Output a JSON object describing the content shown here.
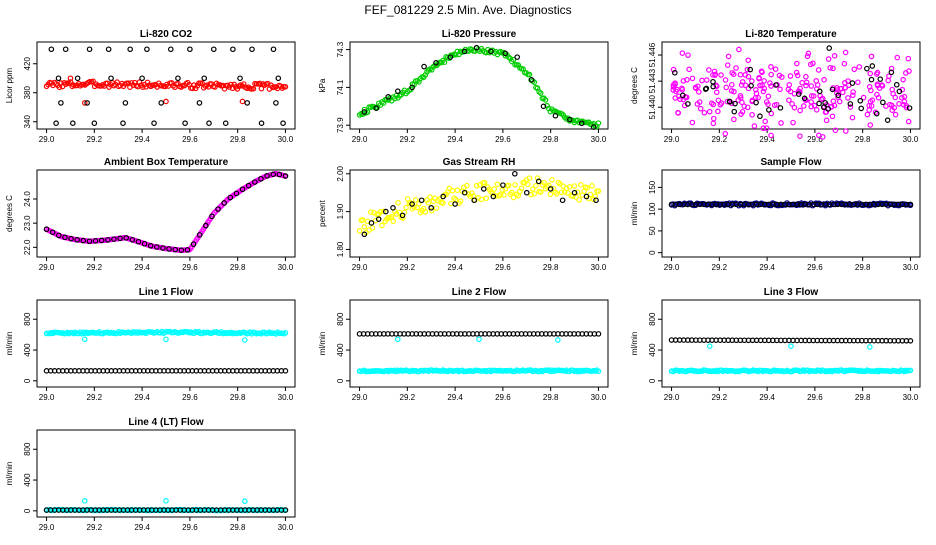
{
  "page": {
    "title": "FEF_081229  2.5 Min. Ave. Diagnostics"
  },
  "chart_data": [
    {
      "id": "co2",
      "type": "scatter",
      "title": "Li-820 CO2",
      "ylabel": "Licor ppm",
      "xlim": [
        29.0,
        30.0
      ],
      "ylim": [
        330,
        450
      ],
      "xticks": [
        "29.0",
        "29.2",
        "29.4",
        "29.6",
        "29.8",
        "30.0"
      ],
      "yticks": [
        "340",
        "380",
        "420"
      ],
      "series": [
        {
          "color": "#ff0000",
          "kind": "band",
          "x": [
            29.0,
            29.2,
            29.4,
            29.6,
            29.8,
            30.0
          ],
          "y": [
            391,
            392,
            391,
            390,
            389,
            389
          ],
          "spread": 4
        },
        {
          "color": "#ff0000",
          "kind": "points",
          "x": [
            29.1,
            29.16,
            29.5,
            29.82
          ],
          "y": [
            400,
            366,
            368,
            368
          ]
        },
        {
          "color": "#000000",
          "kind": "points",
          "x": [
            29.02,
            29.08,
            29.18,
            29.26,
            29.35,
            29.42,
            29.52,
            29.6,
            29.7,
            29.78,
            29.86,
            29.95,
            29.05,
            29.13,
            29.27,
            29.4,
            29.55,
            29.66,
            29.81,
            29.97,
            29.04,
            29.11,
            29.2,
            29.32,
            29.45,
            29.58,
            29.68,
            29.75,
            29.9,
            29.99,
            29.06,
            29.17,
            29.33,
            29.48,
            29.64,
            29.84,
            29.96
          ],
          "y": [
            440,
            440,
            440,
            440,
            440,
            440,
            440,
            440,
            440,
            440,
            440,
            440,
            400,
            400,
            400,
            400,
            400,
            400,
            400,
            400,
            338,
            338,
            338,
            338,
            338,
            338,
            338,
            338,
            338,
            338,
            366,
            366,
            366,
            366,
            366,
            366,
            366
          ]
        }
      ]
    },
    {
      "id": "pressure",
      "type": "scatter",
      "title": "Li-820 Pressure",
      "ylabel": "kPa",
      "xlim": [
        29.0,
        30.0
      ],
      "ylim": [
        73.88,
        74.34
      ],
      "xticks": [
        "29.0",
        "29.2",
        "29.4",
        "29.6",
        "29.8",
        "30.0"
      ],
      "yticks": [
        "73.9",
        "74.1",
        "74.3"
      ],
      "series": [
        {
          "color": "#00cc00",
          "kind": "band",
          "x": [
            29.0,
            29.1,
            29.2,
            29.3,
            29.4,
            29.5,
            29.6,
            29.7,
            29.8,
            29.9,
            30.0
          ],
          "y": [
            73.96,
            74.02,
            74.08,
            74.2,
            74.28,
            74.3,
            74.28,
            74.18,
            73.98,
            73.92,
            73.9
          ],
          "spread": 0.012
        },
        {
          "color": "#000000",
          "kind": "points",
          "x": [
            29.02,
            29.07,
            29.12,
            29.16,
            29.22,
            29.27,
            29.32,
            29.38,
            29.44,
            29.49,
            29.55,
            29.61,
            29.66,
            29.72,
            29.77,
            29.82,
            29.88,
            29.93,
            29.98
          ],
          "y": [
            73.97,
            73.99,
            74.05,
            74.08,
            74.1,
            74.21,
            74.23,
            74.26,
            74.29,
            74.31,
            74.29,
            74.28,
            74.26,
            74.14,
            74.0,
            73.95,
            73.93,
            73.91,
            73.89
          ]
        }
      ]
    },
    {
      "id": "temp820",
      "type": "scatter",
      "title": "Li-820 Temperature",
      "ylabel": "degrees C",
      "xlim": [
        29.0,
        30.0
      ],
      "ylim": [
        51.4375,
        51.4475
      ],
      "xticks": [
        "29.0",
        "29.2",
        "29.4",
        "29.6",
        "29.8",
        "30.0"
      ],
      "yticks": [
        "51.440",
        "51.443",
        "51.446"
      ],
      "series": [
        {
          "color": "#ff00ff",
          "kind": "cloud",
          "x": [
            29.0,
            30.0
          ],
          "y": [
            51.4385,
            51.4452
          ],
          "n": 260,
          "seed": 7
        },
        {
          "color": "#000000",
          "kind": "cloud",
          "x": [
            29.0,
            30.0
          ],
          "y": [
            51.4388,
            51.4446
          ],
          "n": 42,
          "seed": 19
        },
        {
          "color": "#000000",
          "kind": "points",
          "x": [
            29.66
          ],
          "y": [
            51.4468
          ]
        }
      ]
    },
    {
      "id": "ambient",
      "type": "line",
      "title": "Ambient Box Temperature",
      "ylabel": "degrees C",
      "xlim": [
        29.0,
        30.0
      ],
      "ylim": [
        21.6,
        25.2
      ],
      "xticks": [
        "29.0",
        "29.2",
        "29.4",
        "29.6",
        "29.8",
        "30.0"
      ],
      "yticks": [
        "22.0",
        "23.0",
        "24.0"
      ],
      "series": [
        {
          "color": "#ff00ff",
          "kind": "dense",
          "x": [
            29.0,
            29.06,
            29.12,
            29.18,
            29.25,
            29.33,
            29.38,
            29.44,
            29.5,
            29.56,
            29.6,
            29.64,
            29.7,
            29.76,
            29.82,
            29.88,
            29.92,
            29.96,
            30.0
          ],
          "y": [
            22.75,
            22.45,
            22.32,
            22.25,
            22.3,
            22.4,
            22.25,
            22.05,
            21.95,
            21.88,
            21.9,
            22.5,
            23.4,
            24.0,
            24.4,
            24.75,
            24.95,
            25.05,
            24.95
          ]
        },
        {
          "color": "#000000",
          "kind": "sample",
          "x": [
            29.0,
            29.06,
            29.12,
            29.18,
            29.25,
            29.33,
            29.38,
            29.44,
            29.5,
            29.56,
            29.6,
            29.64,
            29.7,
            29.76,
            29.82,
            29.88,
            29.92,
            29.96,
            30.0
          ],
          "y": [
            22.75,
            22.45,
            22.32,
            22.25,
            22.3,
            22.4,
            22.25,
            22.05,
            21.95,
            21.88,
            21.9,
            22.5,
            23.4,
            24.0,
            24.4,
            24.75,
            24.95,
            25.05,
            24.95
          ],
          "n": 40
        }
      ]
    },
    {
      "id": "rh",
      "type": "scatter",
      "title": "Gas Stream RH",
      "ylabel": "percent",
      "xlim": [
        29.0,
        30.0
      ],
      "ylim": [
        1.78,
        2.01
      ],
      "xticks": [
        "29.0",
        "29.2",
        "29.4",
        "29.6",
        "29.8",
        "30.0"
      ],
      "yticks": [
        "1.80",
        "1.90",
        "2.00"
      ],
      "series": [
        {
          "color": "#ffff00",
          "kind": "band",
          "x": [
            29.0,
            29.1,
            29.2,
            29.3,
            29.4,
            29.5,
            29.6,
            29.7,
            29.8,
            29.9,
            30.0
          ],
          "y": [
            1.86,
            1.89,
            1.91,
            1.925,
            1.94,
            1.955,
            1.96,
            1.965,
            1.965,
            1.955,
            1.95
          ],
          "spread": 0.025
        },
        {
          "color": "#000000",
          "kind": "points",
          "x": [
            29.02,
            29.05,
            29.08,
            29.11,
            29.14,
            29.18,
            29.22,
            29.26,
            29.3,
            29.35,
            29.4,
            29.44,
            29.48,
            29.52,
            29.56,
            29.6,
            29.65,
            29.7,
            29.75,
            29.8,
            29.85,
            29.9,
            29.95,
            29.99
          ],
          "y": [
            1.84,
            1.87,
            1.88,
            1.9,
            1.91,
            1.89,
            1.92,
            1.93,
            1.91,
            1.94,
            1.92,
            1.95,
            1.93,
            1.96,
            1.94,
            1.97,
            2.0,
            1.95,
            1.98,
            1.96,
            1.93,
            1.95,
            1.94,
            1.93
          ]
        }
      ]
    },
    {
      "id": "sample",
      "type": "scatter",
      "title": "Sample Flow",
      "ylabel": "ml/min",
      "xlim": [
        29.0,
        30.0
      ],
      "ylim": [
        -10,
        190
      ],
      "xticks": [
        "29.0",
        "29.2",
        "29.4",
        "29.6",
        "29.8",
        "30.0"
      ],
      "yticks": [
        "0",
        "50",
        "100",
        "150"
      ],
      "series": [
        {
          "color": "#00008b",
          "kind": "band",
          "x": [
            29.0,
            30.0
          ],
          "y": [
            111,
            111
          ],
          "spread": 3
        },
        {
          "color": "#000000",
          "kind": "sample",
          "x": [
            29.0,
            30.0
          ],
          "y": [
            111,
            111
          ],
          "n": 60
        }
      ]
    },
    {
      "id": "line1",
      "type": "scatter",
      "title": "Line 1 Flow",
      "ylabel": "ml/min",
      "xlim": [
        29.0,
        30.0
      ],
      "ylim": [
        -80,
        1050
      ],
      "xticks": [
        "29.0",
        "29.2",
        "29.4",
        "29.6",
        "29.8",
        "30.0"
      ],
      "yticks": [
        "0",
        "400",
        "800"
      ],
      "series": [
        {
          "color": "#00ffff",
          "kind": "band",
          "x": [
            29.0,
            29.5,
            30.0
          ],
          "y": [
            620,
            630,
            620
          ],
          "spread": 12
        },
        {
          "color": "#00ffff",
          "kind": "points",
          "x": [
            29.16,
            29.5,
            29.83
          ],
          "y": [
            540,
            540,
            530
          ]
        },
        {
          "color": "#000000",
          "kind": "sample",
          "x": [
            29.0,
            30.0
          ],
          "y": [
            130,
            130
          ],
          "n": 60
        }
      ]
    },
    {
      "id": "line2",
      "type": "scatter",
      "title": "Line 2 Flow",
      "ylabel": "ml/min",
      "xlim": [
        29.0,
        30.0
      ],
      "ylim": [
        -80,
        1050
      ],
      "xticks": [
        "29.0",
        "29.2",
        "29.4",
        "29.6",
        "29.8",
        "30.0"
      ],
      "yticks": [
        "0",
        "400",
        "800"
      ],
      "series": [
        {
          "color": "#00ffff",
          "kind": "band",
          "x": [
            29.0,
            30.0
          ],
          "y": [
            130,
            130
          ],
          "spread": 10
        },
        {
          "color": "#00ffff",
          "kind": "points",
          "x": [
            29.16,
            29.5,
            29.83
          ],
          "y": [
            540,
            540,
            530
          ]
        },
        {
          "color": "#000000",
          "kind": "sample",
          "x": [
            29.0,
            30.0
          ],
          "y": [
            610,
            610
          ],
          "n": 60
        }
      ]
    },
    {
      "id": "line3",
      "type": "scatter",
      "title": "Line 3 Flow",
      "ylabel": "ml/min",
      "xlim": [
        29.0,
        30.0
      ],
      "ylim": [
        -80,
        1050
      ],
      "xticks": [
        "29.0",
        "29.2",
        "29.4",
        "29.6",
        "29.8",
        "30.0"
      ],
      "yticks": [
        "0",
        "400",
        "800"
      ],
      "series": [
        {
          "color": "#00ffff",
          "kind": "band",
          "x": [
            29.0,
            30.0
          ],
          "y": [
            130,
            130
          ],
          "spread": 10
        },
        {
          "color": "#00ffff",
          "kind": "points",
          "x": [
            29.16,
            29.5,
            29.83
          ],
          "y": [
            450,
            450,
            440
          ]
        },
        {
          "color": "#000000",
          "kind": "sample",
          "x": [
            29.0,
            29.5,
            30.0
          ],
          "y": [
            530,
            525,
            520
          ],
          "n": 60
        }
      ]
    },
    {
      "id": "line4",
      "type": "scatter",
      "title": "Line 4 (LT) Flow",
      "ylabel": "ml/min",
      "xlim": [
        29.0,
        30.0
      ],
      "ylim": [
        -80,
        1050
      ],
      "xticks": [
        "29.0",
        "29.2",
        "29.4",
        "29.6",
        "29.8",
        "30.0"
      ],
      "yticks": [
        "0",
        "400",
        "800"
      ],
      "series": [
        {
          "color": "#00ffff",
          "kind": "band",
          "x": [
            29.0,
            30.0
          ],
          "y": [
            10,
            10
          ],
          "spread": 6
        },
        {
          "color": "#00ffff",
          "kind": "points",
          "x": [
            29.16,
            29.5,
            29.83
          ],
          "y": [
            130,
            130,
            125
          ]
        },
        {
          "color": "#000000",
          "kind": "sample",
          "x": [
            29.0,
            30.0
          ],
          "y": [
            10,
            10
          ],
          "n": 60
        }
      ]
    }
  ]
}
